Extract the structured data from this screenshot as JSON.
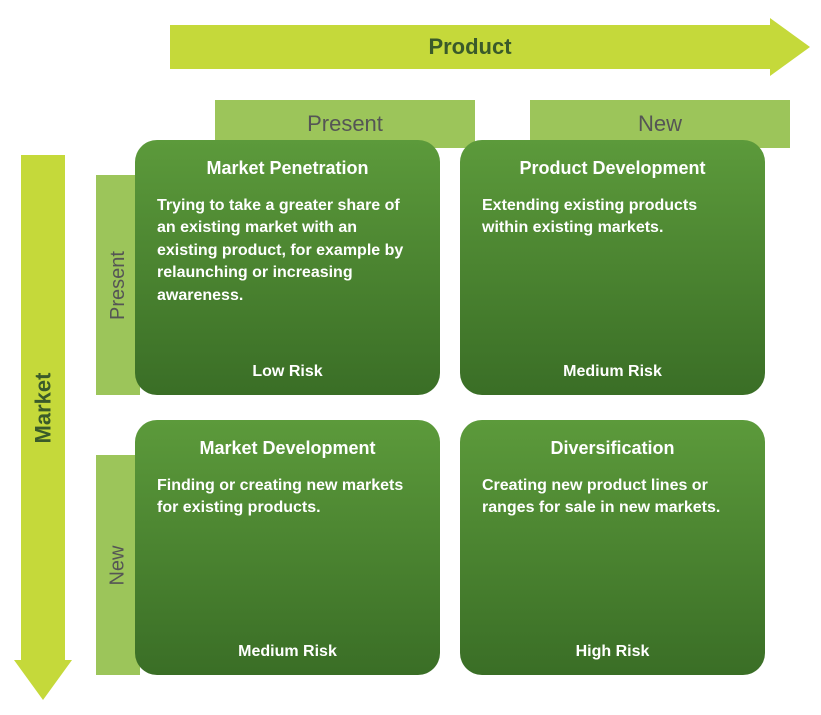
{
  "colors": {
    "arrow": "#c5d93a",
    "tab": "#9cc55a",
    "card_gradient_top": "#5c9a3b",
    "card_gradient_bottom": "#3a6e26",
    "axis_text": "#3a5a2a",
    "tab_text": "#555555",
    "card_text": "#ffffff"
  },
  "axes": {
    "x": "Product",
    "y": "Market"
  },
  "cols": [
    {
      "label": "Present"
    },
    {
      "label": "New"
    }
  ],
  "rows": [
    {
      "label": "Present"
    },
    {
      "label": "New"
    }
  ],
  "quadrants": [
    {
      "title": "Market Penetration",
      "body": "Trying to take a greater share of an existing market with an existing product, for example by relaunching or increasing awareness.",
      "risk": "Low Risk"
    },
    {
      "title": "Product Development",
      "body": "Extending existing products within existing markets.",
      "risk": "Medium Risk"
    },
    {
      "title": "Market Development",
      "body": "Finding or creating new markets for existing products.",
      "risk": "Medium Risk"
    },
    {
      "title": "Diversification",
      "body": "Creating new product lines or ranges for sale in new markets.",
      "risk": "High Risk"
    }
  ]
}
